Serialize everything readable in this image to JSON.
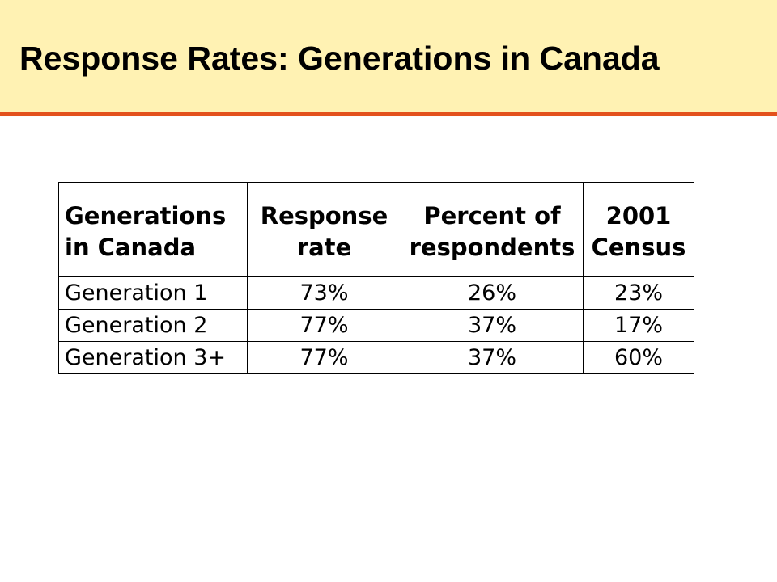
{
  "slide": {
    "title": "Response Rates: Generations in Canada"
  },
  "table": {
    "headers": [
      {
        "line1": "Generations",
        "line2": "in Canada"
      },
      {
        "line1": "Response",
        "line2": "rate"
      },
      {
        "line1": "Percent of",
        "line2": "respondents"
      },
      {
        "line1": "2001",
        "line2": "Census"
      }
    ],
    "rows": [
      [
        "Generation 1",
        "73%",
        "26%",
        "23%"
      ],
      [
        "Generation 2",
        "77%",
        "37%",
        "17%"
      ],
      [
        "Generation 3+",
        "77%",
        "37%",
        "60%"
      ]
    ]
  },
  "colors": {
    "title_background": "#fff2b3",
    "title_rule": "#e3511c",
    "text": "#000000"
  }
}
